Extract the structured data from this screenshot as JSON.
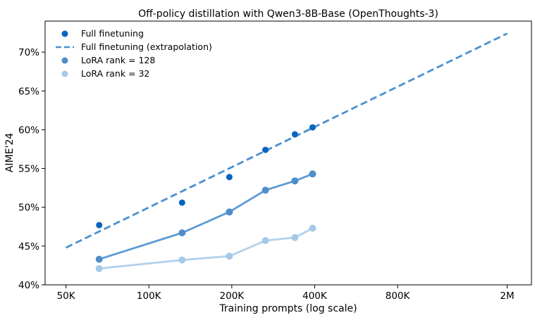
{
  "chart_data": {
    "type": "line",
    "title": "Off-policy distillation with Qwen3-8B-Base (OpenThoughts-3)",
    "xlabel": "Training prompts (log scale)",
    "ylabel": "AIME'24",
    "xscale": "log",
    "xlim": [
      42000,
      2450000
    ],
    "ylim": [
      40,
      74
    ],
    "xticks": [
      {
        "value": 50000,
        "label": "50K"
      },
      {
        "value": 100000,
        "label": "100K"
      },
      {
        "value": 200000,
        "label": "200K"
      },
      {
        "value": 400000,
        "label": "400K"
      },
      {
        "value": 800000,
        "label": "800K"
      },
      {
        "value": 2000000,
        "label": "2M"
      }
    ],
    "yticks": [
      {
        "value": 40,
        "label": "40%"
      },
      {
        "value": 45,
        "label": "45%"
      },
      {
        "value": 50,
        "label": "50%"
      },
      {
        "value": 55,
        "label": "55%"
      },
      {
        "value": 60,
        "label": "60%"
      },
      {
        "value": 65,
        "label": "65%"
      },
      {
        "value": 70,
        "label": "70%"
      }
    ],
    "legend_position": "top-left",
    "grid": false,
    "series": [
      {
        "name": "Full finetuning",
        "style": "scatter",
        "color": "#0a64c0",
        "x": [
          66000,
          132000,
          196000,
          265000,
          339000,
          393000
        ],
        "y": [
          47.7,
          50.6,
          53.9,
          57.4,
          59.4,
          60.3
        ]
      },
      {
        "name": "Full finetuning (extrapolation)",
        "style": "dashed",
        "color": "#4a90cf",
        "x": [
          50000,
          2000000
        ],
        "y": [
          44.8,
          72.4
        ]
      },
      {
        "name": "LoRA rank = 128",
        "style": "line-markers",
        "color": "#5b9bd5",
        "marker_color": "#4f8ec9",
        "x": [
          66000,
          132000,
          196000,
          265000,
          339000,
          393000
        ],
        "y": [
          43.3,
          46.7,
          49.4,
          52.2,
          53.4,
          54.3
        ]
      },
      {
        "name": "LoRA rank = 32",
        "style": "line-markers",
        "color": "#b2d1ec",
        "marker_color": "#a5c9e8",
        "x": [
          66000,
          132000,
          196000,
          265000,
          339000,
          393000
        ],
        "y": [
          42.1,
          43.2,
          43.7,
          45.7,
          46.1,
          47.3
        ]
      }
    ]
  }
}
